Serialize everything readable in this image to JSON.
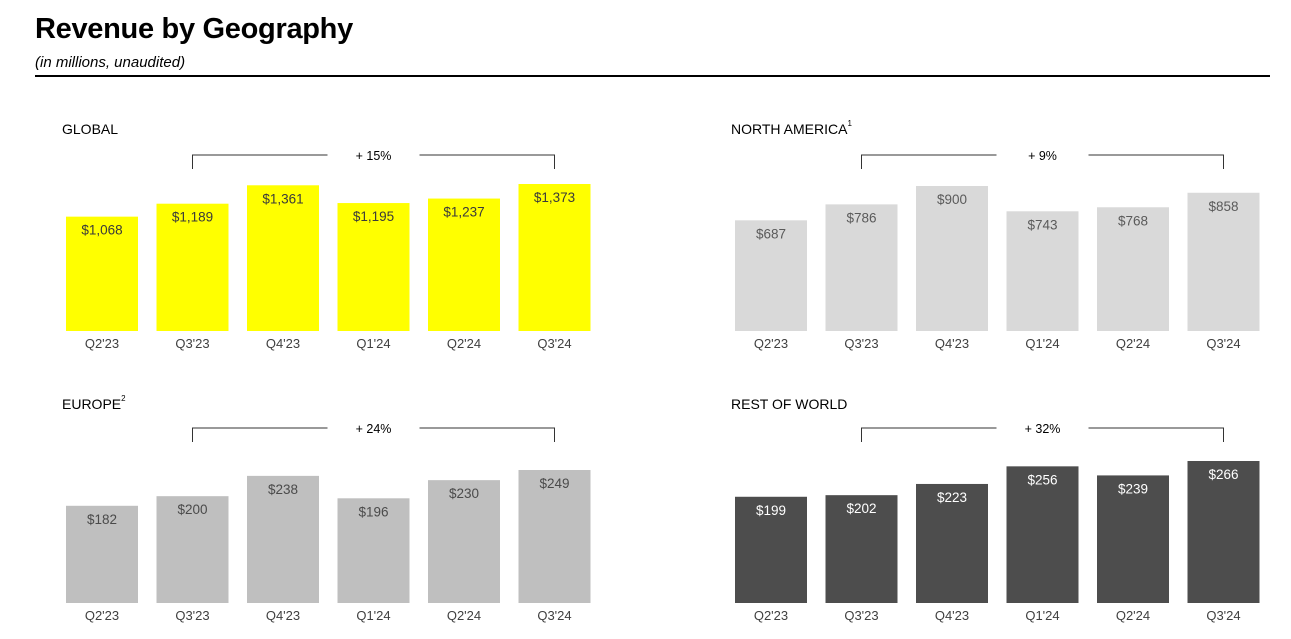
{
  "header": {
    "title": "Revenue by Geography",
    "subtitle": "(in millions, unaudited)"
  },
  "chart_data": [
    {
      "type": "bar",
      "title": "GLOBAL",
      "footnote": "",
      "categories": [
        "Q2'23",
        "Q3'23",
        "Q4'23",
        "Q1'24",
        "Q2'24",
        "Q3'24"
      ],
      "values": [
        1068,
        1189,
        1361,
        1195,
        1237,
        1373
      ],
      "labels": [
        "$1,068",
        "$1,189",
        "$1,361",
        "$1,195",
        "$1,237",
        "$1,373"
      ],
      "growth_annotation": "+ 15%",
      "color": "#ffff00",
      "label_color": "#3a3a3a"
    },
    {
      "type": "bar",
      "title": "NORTH AMERICA",
      "footnote": "1",
      "categories": [
        "Q2'23",
        "Q3'23",
        "Q4'23",
        "Q1'24",
        "Q2'24",
        "Q3'24"
      ],
      "values": [
        687,
        786,
        900,
        743,
        768,
        858
      ],
      "labels": [
        "$687",
        "$786",
        "$900",
        "$743",
        "$768",
        "$858"
      ],
      "growth_annotation": "+ 9%",
      "color": "#d9d9d9",
      "label_color": "#5a5a5a"
    },
    {
      "type": "bar",
      "title": "EUROPE",
      "footnote": "2",
      "categories": [
        "Q2'23",
        "Q3'23",
        "Q4'23",
        "Q1'24",
        "Q2'24",
        "Q3'24"
      ],
      "values": [
        182,
        200,
        238,
        196,
        230,
        249
      ],
      "labels": [
        "$182",
        "$200",
        "$238",
        "$196",
        "$230",
        "$249"
      ],
      "growth_annotation": "+ 24%",
      "color": "#bfbfbf",
      "label_color": "#4a4a4a"
    },
    {
      "type": "bar",
      "title": "REST OF WORLD",
      "footnote": "",
      "categories": [
        "Q2'23",
        "Q3'23",
        "Q4'23",
        "Q1'24",
        "Q2'24",
        "Q3'24"
      ],
      "values": [
        199,
        202,
        223,
        256,
        239,
        266
      ],
      "labels": [
        "$199",
        "$202",
        "$223",
        "$256",
        "$239",
        "$266"
      ],
      "growth_annotation": "+ 32%",
      "color": "#4d4d4d",
      "label_color": "#ffffff"
    }
  ]
}
